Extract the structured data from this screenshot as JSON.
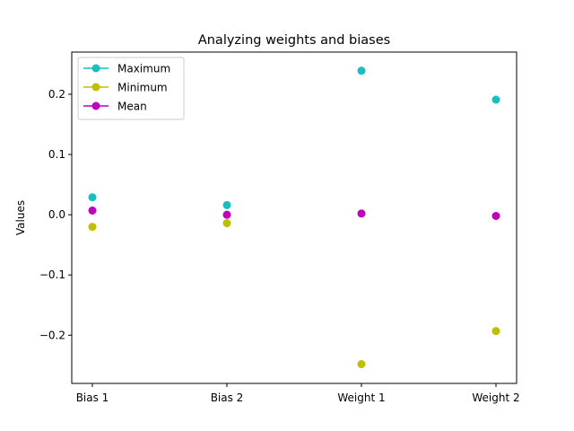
{
  "chart_data": {
    "type": "scatter",
    "title": "Analyzing weights and biases",
    "xlabel": "",
    "ylabel": "Values",
    "categories": [
      "Bias 1",
      "Bias 2",
      "Weight 1",
      "Weight 2"
    ],
    "ylim": [
      -0.28,
      0.27
    ],
    "yticks": [
      -0.2,
      -0.1,
      0.0,
      0.1,
      0.2
    ],
    "ytick_labels": [
      "−0.2",
      "−0.1",
      "0.0",
      "0.1",
      "0.2"
    ],
    "grid": false,
    "legend_position": "upper-left",
    "series": [
      {
        "name": "Maximum",
        "color": "#17bfbf",
        "values": [
          0.029,
          0.016,
          0.239,
          0.191
        ]
      },
      {
        "name": "Minimum",
        "color": "#bfbf00",
        "values": [
          -0.02,
          -0.014,
          -0.248,
          -0.193
        ]
      },
      {
        "name": "Mean",
        "color": "#bf00bf",
        "values": [
          0.007,
          0.0,
          0.002,
          -0.002
        ]
      }
    ]
  }
}
